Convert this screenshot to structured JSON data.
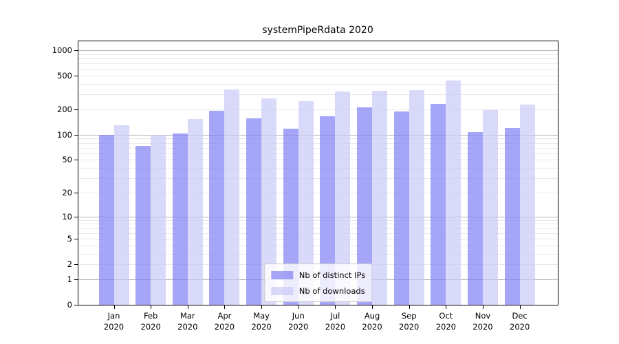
{
  "chart_data": {
    "type": "bar",
    "title": "systemPipeRdata 2020",
    "categories": [
      "Jan",
      "Feb",
      "Mar",
      "Apr",
      "May",
      "Jun",
      "Jul",
      "Aug",
      "Sep",
      "Oct",
      "Nov",
      "Dec"
    ],
    "year_label": "2020",
    "series": [
      {
        "name": "Nb of distinct IPs",
        "values": [
          99,
          73,
          103,
          193,
          157,
          118,
          167,
          211,
          189,
          232,
          107,
          120
        ]
      },
      {
        "name": "Nb of downloads",
        "values": [
          130,
          100,
          154,
          346,
          269,
          252,
          324,
          333,
          337,
          437,
          195,
          226
        ]
      }
    ],
    "yscale": "log1p",
    "ylim": [
      0,
      1000
    ],
    "ytick_values": [
      0,
      1,
      2,
      5,
      10,
      20,
      50,
      100,
      200,
      500,
      1000
    ],
    "ytick_labels": [
      "0",
      "1",
      "2",
      "5",
      "10",
      "20",
      "50",
      "100",
      "200",
      "500",
      "1000"
    ],
    "grid": "horizontal major and minor gridlines",
    "legend_position": "lower center"
  },
  "colors": {
    "ips_bar": "rgba(128,128,245,0.7)",
    "downloads_bar": "rgba(201,201,248,0.7)",
    "grid_major": "#b3b3b3",
    "grid_minor": "#e9e9e9",
    "axis": "#000000",
    "background": "#ffffff"
  }
}
